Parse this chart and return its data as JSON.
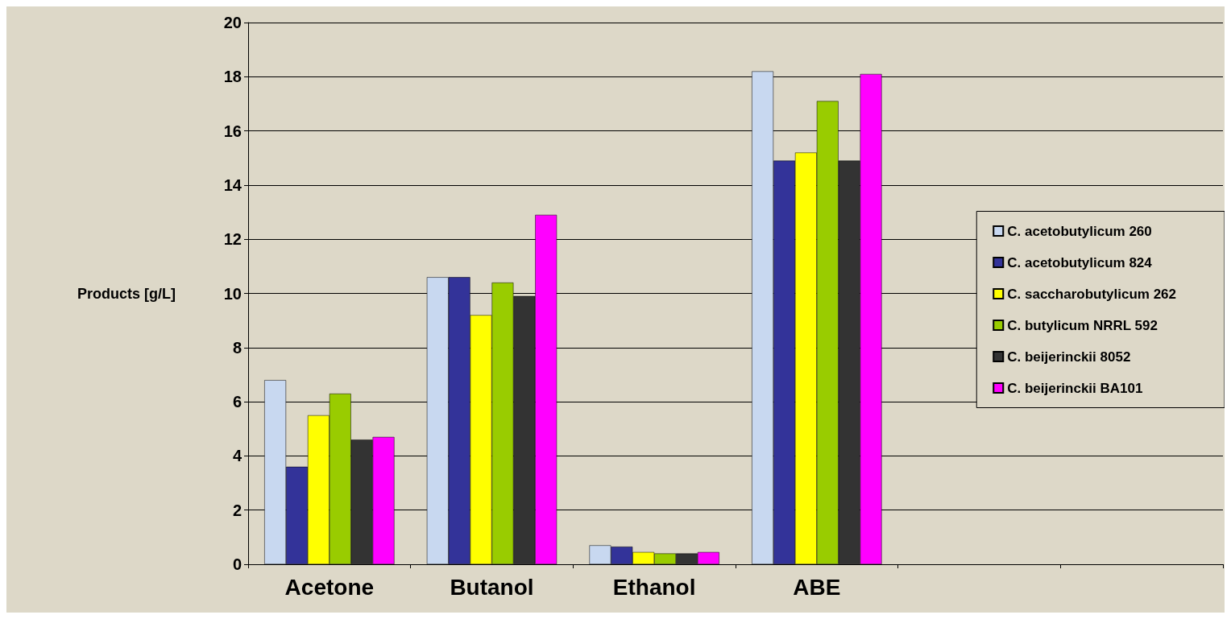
{
  "chart_data": {
    "type": "bar",
    "ylabel": "Products [g/L]",
    "categories": [
      "Acetone",
      "Butanol",
      "Ethanol",
      "ABE",
      null,
      null
    ],
    "series": [
      {
        "name": "C. acetobutylicum 260",
        "color": "#c8d8f0",
        "values": [
          6.8,
          10.6,
          0.7,
          18.2,
          null,
          null
        ]
      },
      {
        "name": "C. acetobutylicum 824",
        "color": "#333399",
        "values": [
          3.6,
          10.6,
          0.65,
          14.9,
          null,
          null
        ]
      },
      {
        "name": "C. saccharobutylicum 262",
        "color": "#ffff00",
        "values": [
          5.5,
          9.2,
          0.45,
          15.2,
          null,
          null
        ]
      },
      {
        "name": "C. butylicum NRRL 592",
        "color": "#99cc00",
        "values": [
          6.3,
          10.4,
          0.4,
          17.1,
          null,
          null
        ]
      },
      {
        "name": "C. beijerinckii 8052",
        "color": "#333333",
        "values": [
          4.6,
          9.9,
          0.4,
          14.9,
          null,
          null
        ]
      },
      {
        "name": "C. beijerinckii BA101",
        "color": "#ff00ff",
        "values": [
          4.7,
          12.9,
          0.45,
          18.1,
          null,
          null
        ]
      }
    ],
    "ylim": [
      0,
      20
    ],
    "yticks": [
      0,
      2,
      4,
      6,
      8,
      10,
      12,
      14,
      16,
      18,
      20
    ],
    "grid": "y",
    "legend": "right"
  }
}
